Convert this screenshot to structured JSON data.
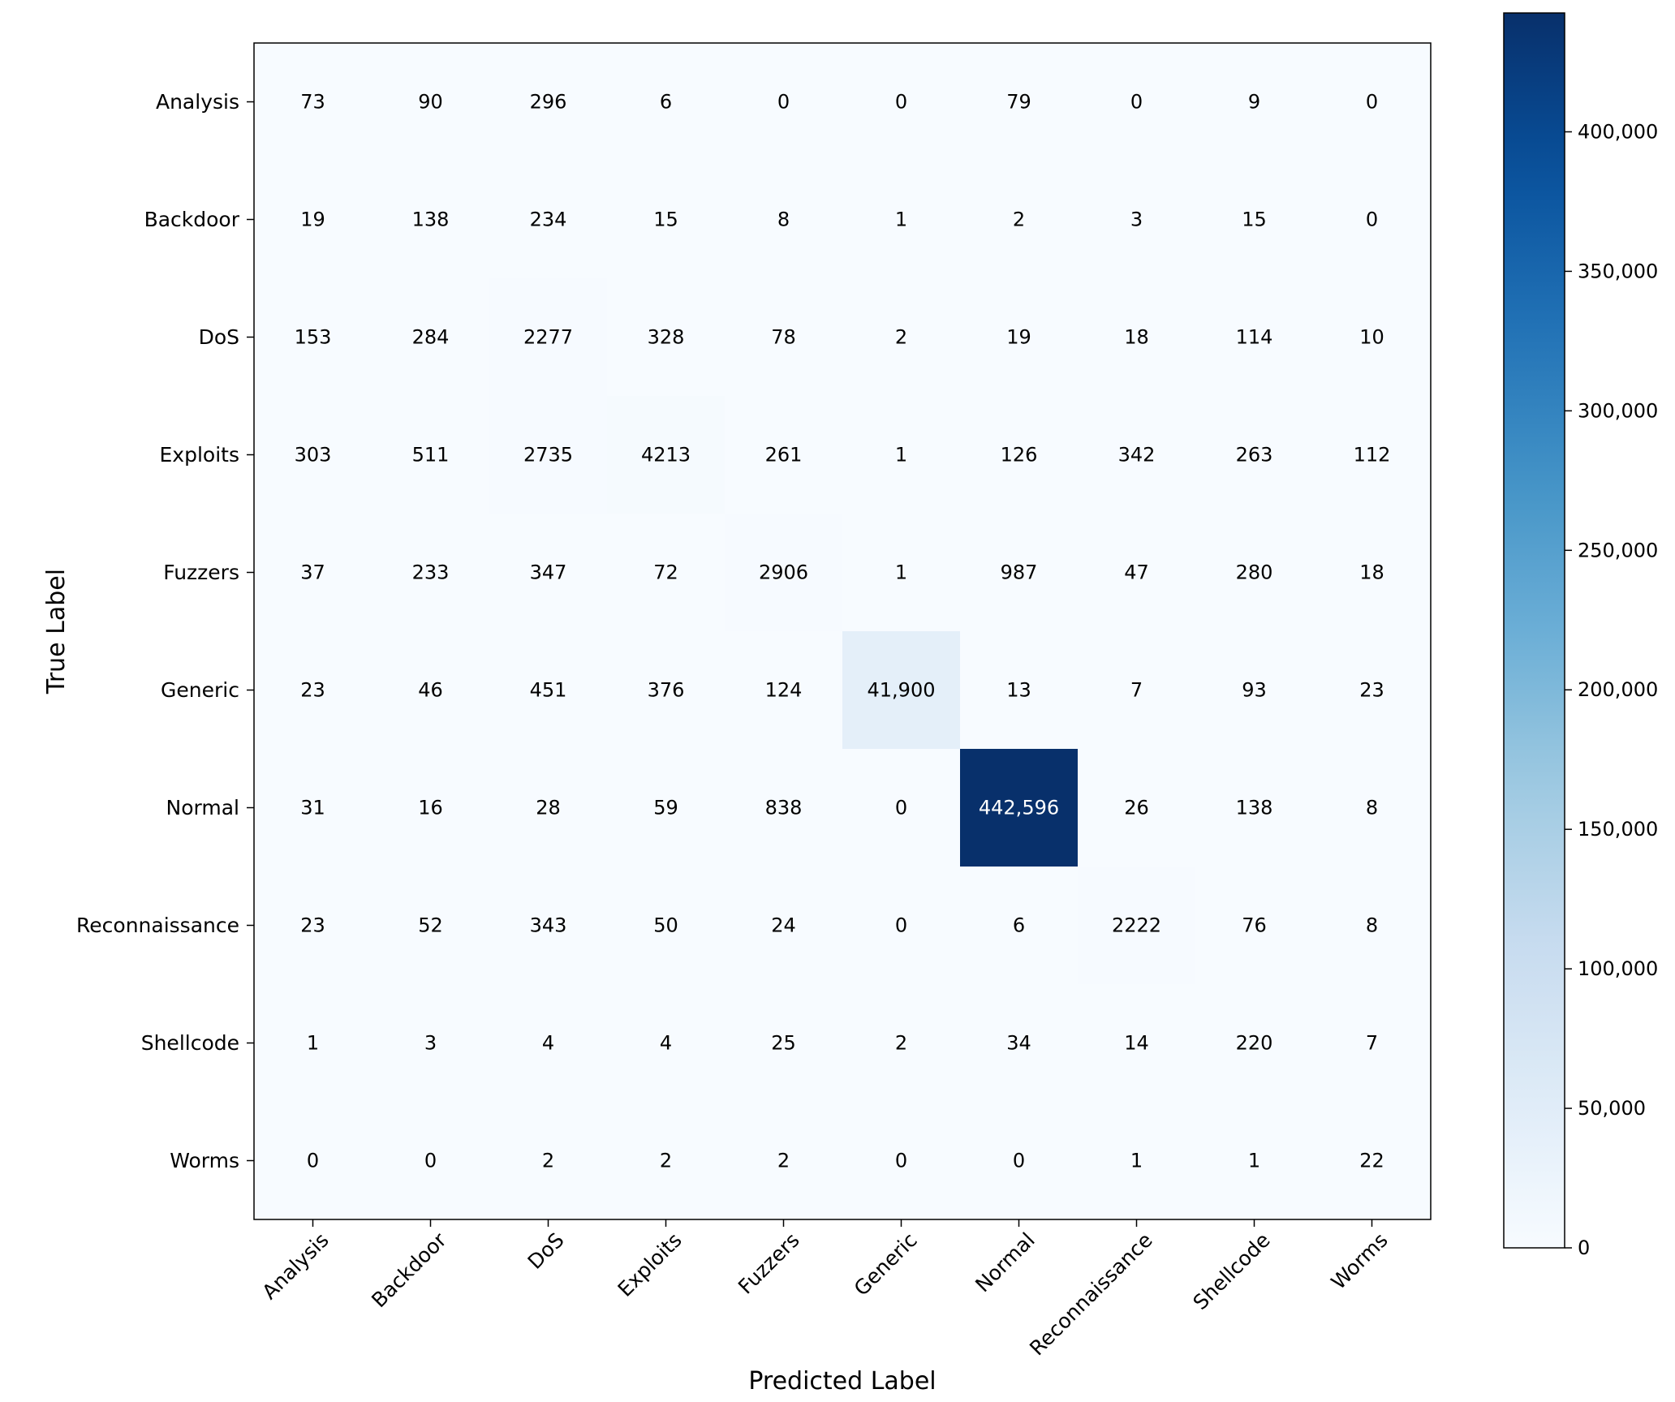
{
  "chart_data": {
    "type": "heatmap",
    "title": "",
    "xlabel": "Predicted Label",
    "ylabel": "True Label",
    "x_categories": [
      "Analysis",
      "Backdoor",
      "DoS",
      "Exploits",
      "Fuzzers",
      "Generic",
      "Normal",
      "Reconnaissance",
      "Shellcode",
      "Worms"
    ],
    "y_categories": [
      "Analysis",
      "Backdoor",
      "DoS",
      "Exploits",
      "Fuzzers",
      "Generic",
      "Normal",
      "Reconnaissance",
      "Shellcode",
      "Worms"
    ],
    "matrix": [
      [
        73,
        90,
        296,
        6,
        0,
        0,
        79,
        0,
        9,
        0
      ],
      [
        19,
        138,
        234,
        15,
        8,
        1,
        2,
        3,
        15,
        0
      ],
      [
        153,
        284,
        2277,
        328,
        78,
        2,
        19,
        18,
        114,
        10
      ],
      [
        303,
        511,
        2735,
        4213,
        261,
        1,
        126,
        342,
        263,
        112
      ],
      [
        37,
        233,
        347,
        72,
        2906,
        1,
        987,
        47,
        280,
        18
      ],
      [
        23,
        46,
        451,
        376,
        124,
        41900,
        13,
        7,
        93,
        23
      ],
      [
        31,
        16,
        28,
        59,
        838,
        0,
        442596,
        26,
        138,
        8
      ],
      [
        23,
        52,
        343,
        50,
        24,
        0,
        6,
        2222,
        76,
        8
      ],
      [
        1,
        3,
        4,
        4,
        25,
        2,
        34,
        14,
        220,
        7
      ],
      [
        0,
        0,
        2,
        2,
        2,
        0,
        0,
        1,
        1,
        22
      ]
    ],
    "colormap": "Blues",
    "color_range": [
      0,
      442596
    ],
    "colorbar": {
      "ticks": [
        0,
        50000,
        100000,
        150000,
        200000,
        250000,
        300000,
        350000,
        400000
      ],
      "tick_labels": [
        "0",
        "50,000",
        "100,000",
        "150,000",
        "200,000",
        "250,000",
        "300,000",
        "350,000",
        "400,000"
      ]
    },
    "cell_value_format": "thousands-separator",
    "grid": false,
    "legend": "none"
  },
  "colors": {
    "low": "#f7fbff",
    "high": "#08306b",
    "text_dark": "#000000",
    "text_light": "#ffffff"
  }
}
